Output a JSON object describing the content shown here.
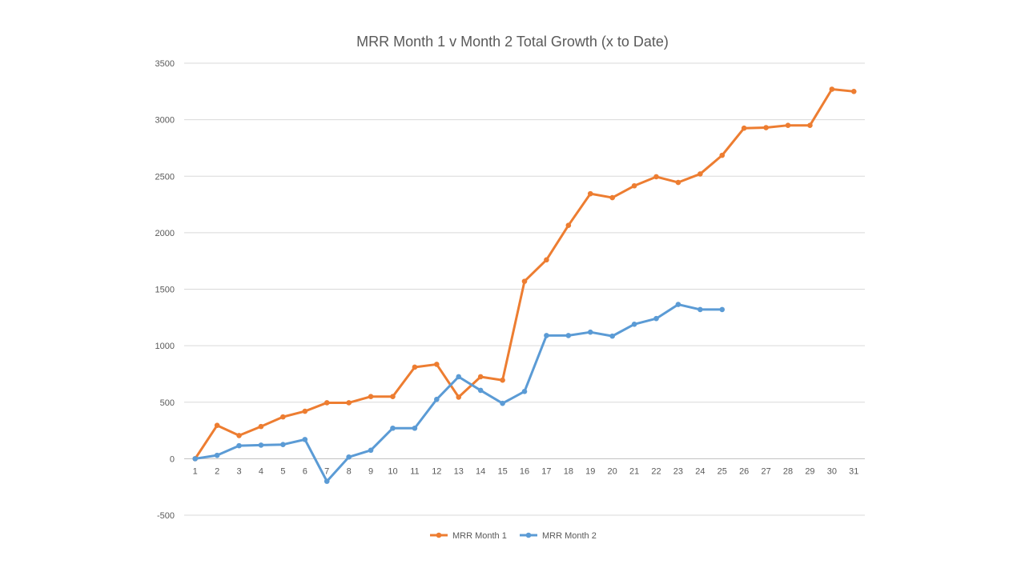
{
  "chart_data": {
    "type": "line",
    "title": "MRR Month 1 v Month 2 Total Growth (x to Date)",
    "xlabel": "",
    "ylabel": "",
    "ylim": [
      -500,
      3500
    ],
    "y_ticks": [
      -500,
      0,
      500,
      1000,
      1500,
      2000,
      2500,
      3000,
      3500
    ],
    "grid": true,
    "legend_position": "bottom",
    "categories": [
      "1",
      "2",
      "3",
      "4",
      "5",
      "6",
      "7",
      "8",
      "9",
      "10",
      "11",
      "12",
      "13",
      "14",
      "15",
      "16",
      "17",
      "18",
      "19",
      "20",
      "21",
      "22",
      "23",
      "24",
      "25",
      "26",
      "27",
      "28",
      "29",
      "30",
      "31"
    ],
    "series": [
      {
        "name": "MRR Month 1",
        "color": "#ED7D31",
        "values": [
          0,
          295,
          205,
          285,
          370,
          420,
          495,
          495,
          550,
          550,
          810,
          835,
          545,
          725,
          695,
          1570,
          1760,
          2065,
          2345,
          2310,
          2415,
          2495,
          2445,
          2520,
          2685,
          2925,
          2930,
          2950,
          2950,
          3270,
          3250
        ]
      },
      {
        "name": "MRR Month 2",
        "color": "#5B9BD5",
        "values": [
          0,
          30,
          115,
          120,
          125,
          170,
          -200,
          15,
          75,
          270,
          270,
          525,
          725,
          605,
          490,
          595,
          1090,
          1090,
          1120,
          1085,
          1190,
          1240,
          1365,
          1320,
          1320,
          null,
          null,
          null,
          null,
          null,
          null
        ]
      }
    ]
  }
}
